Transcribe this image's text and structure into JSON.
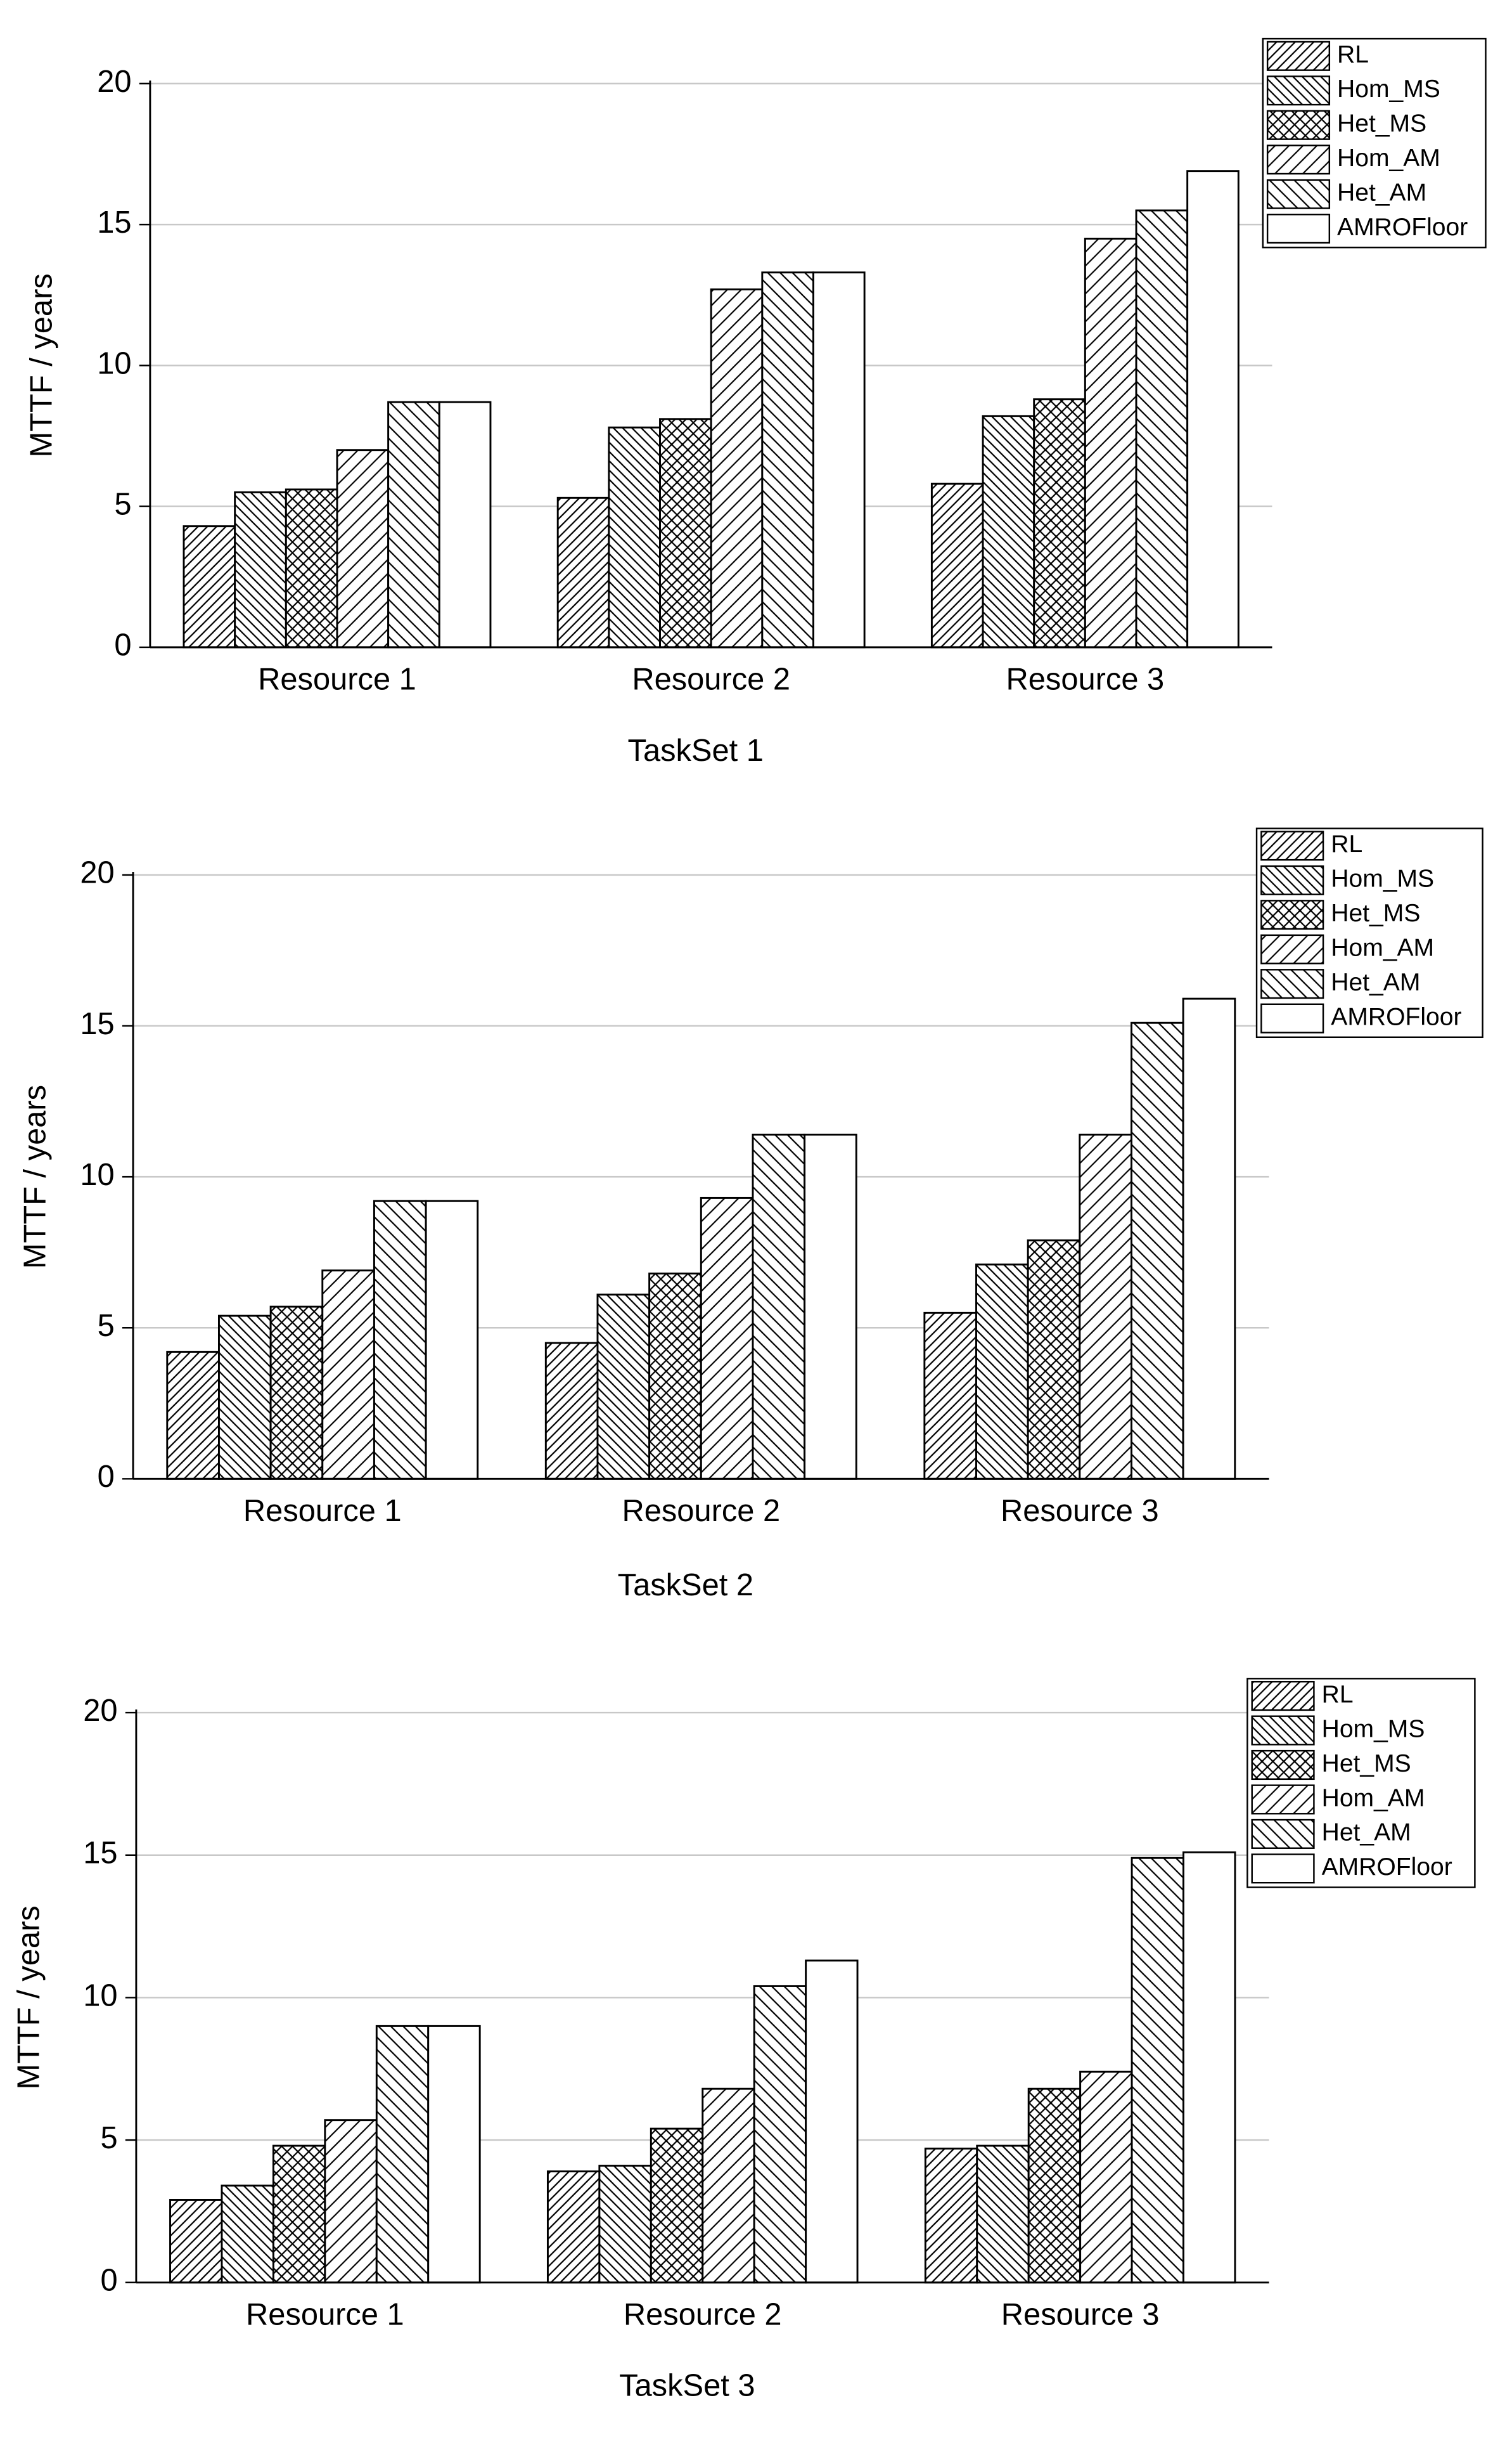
{
  "chart_data": [
    {
      "type": "bar",
      "x_label": "TaskSet 1",
      "y_label": "MTTF / years",
      "grid": true,
      "legend": "top-right",
      "categories": [
        "Resource 1",
        "Resource 2",
        "Resource 3"
      ],
      "ylim": [
        0,
        20
      ],
      "yticks": [
        0,
        5,
        10,
        15,
        20
      ],
      "series": [
        {
          "name": "RL",
          "color": "#000000",
          "hatch": "dense-forward",
          "values": [
            4.3,
            5.3,
            5.8
          ]
        },
        {
          "name": "Hom_MS",
          "color": "#000000",
          "hatch": "dense-back",
          "values": [
            5.5,
            7.8,
            8.2
          ]
        },
        {
          "name": "Het_MS",
          "color": "#000000",
          "hatch": "cross",
          "values": [
            5.6,
            8.1,
            8.8
          ]
        },
        {
          "name": "Hom_AM",
          "color": "#000000",
          "hatch": "wide-forward",
          "values": [
            7.0,
            12.7,
            14.5
          ]
        },
        {
          "name": "Het_AM",
          "color": "#000000",
          "hatch": "wide-back",
          "values": [
            8.7,
            13.3,
            15.5
          ]
        },
        {
          "name": "AMROFloor",
          "color": "#000000",
          "hatch": "none",
          "values": [
            8.7,
            13.3,
            16.9
          ]
        }
      ]
    },
    {
      "type": "bar",
      "x_label": "TaskSet 2",
      "y_label": "MTTF / years",
      "grid": true,
      "legend": "top-right",
      "categories": [
        "Resource 1",
        "Resource 2",
        "Resource 3"
      ],
      "ylim": [
        0,
        20
      ],
      "yticks": [
        0,
        5,
        10,
        15,
        20
      ],
      "series": [
        {
          "name": "RL",
          "color": "#000000",
          "hatch": "dense-forward",
          "values": [
            4.2,
            4.5,
            5.5
          ]
        },
        {
          "name": "Hom_MS",
          "color": "#000000",
          "hatch": "dense-back",
          "values": [
            5.4,
            6.1,
            7.1
          ]
        },
        {
          "name": "Het_MS",
          "color": "#000000",
          "hatch": "cross",
          "values": [
            5.7,
            6.8,
            7.9
          ]
        },
        {
          "name": "Hom_AM",
          "color": "#000000",
          "hatch": "wide-forward",
          "values": [
            6.9,
            9.3,
            11.4
          ]
        },
        {
          "name": "Het_AM",
          "color": "#000000",
          "hatch": "wide-back",
          "values": [
            9.2,
            11.4,
            15.1
          ]
        },
        {
          "name": "AMROFloor",
          "color": "#000000",
          "hatch": "none",
          "values": [
            9.2,
            11.4,
            15.9
          ]
        }
      ]
    },
    {
      "type": "bar",
      "x_label": "TaskSet 3",
      "y_label": "MTTF / years",
      "grid": true,
      "legend": "top-right",
      "categories": [
        "Resource 1",
        "Resource 2",
        "Resource 3"
      ],
      "ylim": [
        0,
        20
      ],
      "yticks": [
        0,
        5,
        10,
        15,
        20
      ],
      "series": [
        {
          "name": "RL",
          "color": "#000000",
          "hatch": "dense-forward",
          "values": [
            2.9,
            3.9,
            4.7
          ]
        },
        {
          "name": "Hom_MS",
          "color": "#000000",
          "hatch": "dense-back",
          "values": [
            3.4,
            4.1,
            4.8
          ]
        },
        {
          "name": "Het_MS",
          "color": "#000000",
          "hatch": "cross",
          "values": [
            4.8,
            5.4,
            6.8
          ]
        },
        {
          "name": "Hom_AM",
          "color": "#000000",
          "hatch": "wide-forward",
          "values": [
            5.7,
            6.8,
            7.4
          ]
        },
        {
          "name": "Het_AM",
          "color": "#000000",
          "hatch": "wide-back",
          "values": [
            9.0,
            10.4,
            14.9
          ]
        },
        {
          "name": "AMROFloor",
          "color": "#000000",
          "hatch": "none",
          "values": [
            9.0,
            11.3,
            15.1
          ]
        }
      ]
    }
  ]
}
